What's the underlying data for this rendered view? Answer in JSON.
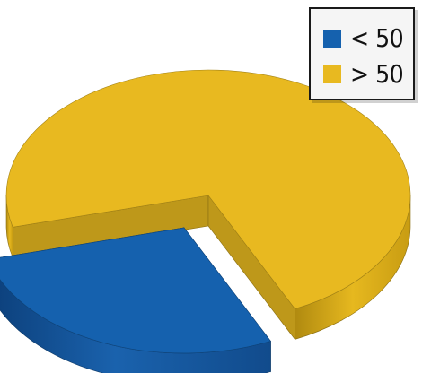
{
  "chart_data": {
    "type": "pie",
    "title": "",
    "exploded": true,
    "three_d": true,
    "legend_position": "top-right",
    "slices": [
      {
        "label": "< 50",
        "value": 28,
        "color": "#1561ae",
        "exploded": true
      },
      {
        "label": "> 50",
        "value": 72,
        "color": "#e8b920",
        "exploded": false
      }
    ]
  }
}
